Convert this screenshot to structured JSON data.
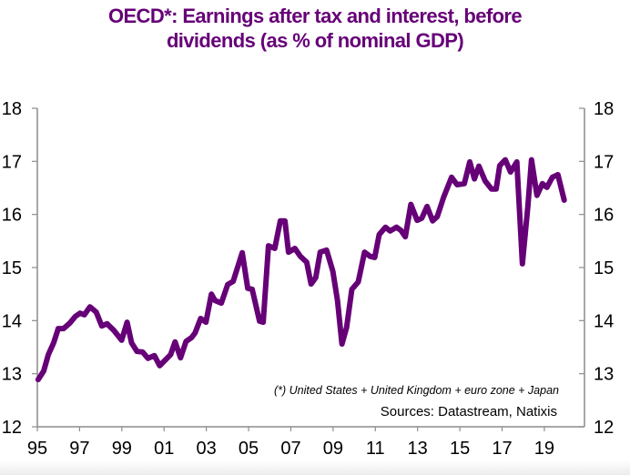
{
  "chart_data": {
    "type": "line",
    "title": "OECD*:  Earnings after tax and interest, before dividends (as % of nominal GDP)",
    "title_lines": [
      "OECD*:  Earnings after tax and interest, before",
      "dividends (as % of nominal GDP)"
    ],
    "xlabel": "",
    "ylabel": "",
    "xlim": [
      1995,
      2020.9
    ],
    "ylim": [
      12,
      18
    ],
    "y_ticks": [
      12,
      13,
      14,
      15,
      16,
      17,
      18
    ],
    "y_tick_labels": [
      "12",
      "13",
      "14",
      "15",
      "16",
      "17",
      "18"
    ],
    "x_ticks": [
      1995,
      1997,
      1999,
      2001,
      2003,
      2005,
      2007,
      2009,
      2011,
      2013,
      2015,
      2017,
      2019
    ],
    "x_tick_labels": [
      "95",
      "97",
      "99",
      "01",
      "03",
      "05",
      "07",
      "09",
      "11",
      "13",
      "15",
      "17",
      "19"
    ],
    "secondary_y_axis": true,
    "grid": false,
    "legend": "none",
    "line_color": "#660077",
    "annotations": [
      "(*) United States + United Kingdom + euro zone + Japan",
      "Sources:  Datastream,  Natixis"
    ],
    "series": [
      {
        "name": "OECD earnings after tax and interest (% of GDP)",
        "x": [
          1995.04,
          1995.3,
          1995.52,
          1995.77,
          1995.99,
          1996.24,
          1996.55,
          1996.8,
          1997.02,
          1997.23,
          1997.49,
          1997.79,
          1998.05,
          1998.3,
          1998.61,
          1998.99,
          1999.25,
          1999.46,
          1999.72,
          1999.98,
          2000.24,
          2000.54,
          2000.79,
          2001.09,
          2001.31,
          2001.52,
          2001.78,
          2002.04,
          2002.3,
          2002.47,
          2002.73,
          2002.98,
          2003.24,
          2003.41,
          2003.71,
          2004.01,
          2004.27,
          2004.7,
          2004.96,
          2005.17,
          2005.52,
          2005.69,
          2005.94,
          2006.24,
          2006.5,
          2006.72,
          2006.89,
          2007.19,
          2007.45,
          2007.75,
          2007.96,
          2008.18,
          2008.39,
          2008.69,
          2008.99,
          2009.21,
          2009.42,
          2009.64,
          2009.89,
          2010.19,
          2010.49,
          2010.75,
          2010.97,
          2011.18,
          2011.48,
          2011.7,
          2012.0,
          2012.21,
          2012.42,
          2012.68,
          2012.98,
          2013.2,
          2013.45,
          2013.71,
          2013.93,
          2014.23,
          2014.61,
          2014.87,
          2015.21,
          2015.47,
          2015.69,
          2015.9,
          2016.2,
          2016.5,
          2016.72,
          2016.89,
          2017.15,
          2017.4,
          2017.7,
          2017.96,
          2018.22,
          2018.39,
          2018.65,
          2018.91,
          2019.12,
          2019.38,
          2019.64,
          2019.94
        ],
        "values": [
          12.89,
          13.05,
          13.36,
          13.58,
          13.85,
          13.85,
          13.96,
          14.08,
          14.14,
          14.11,
          14.26,
          14.16,
          13.9,
          13.94,
          13.82,
          13.63,
          13.97,
          13.58,
          13.42,
          13.41,
          13.29,
          13.34,
          13.15,
          13.27,
          13.36,
          13.6,
          13.3,
          13.61,
          13.68,
          13.77,
          14.04,
          13.97,
          14.5,
          14.38,
          14.33,
          14.68,
          14.74,
          15.28,
          14.61,
          14.59,
          13.99,
          13.97,
          15.41,
          15.36,
          15.88,
          15.88,
          15.29,
          15.36,
          15.21,
          15.1,
          14.69,
          14.81,
          15.29,
          15.33,
          14.93,
          14.38,
          13.56,
          13.87,
          14.59,
          14.73,
          15.29,
          15.21,
          15.19,
          15.62,
          15.76,
          15.69,
          15.76,
          15.7,
          15.58,
          16.19,
          15.89,
          15.93,
          16.15,
          15.88,
          15.96,
          16.32,
          16.7,
          16.56,
          16.58,
          16.99,
          16.67,
          16.91,
          16.63,
          16.48,
          16.48,
          16.92,
          17.03,
          16.8,
          16.99,
          15.07,
          16.15,
          17.03,
          16.36,
          16.58,
          16.51,
          16.7,
          16.75,
          16.27
        ]
      }
    ]
  }
}
